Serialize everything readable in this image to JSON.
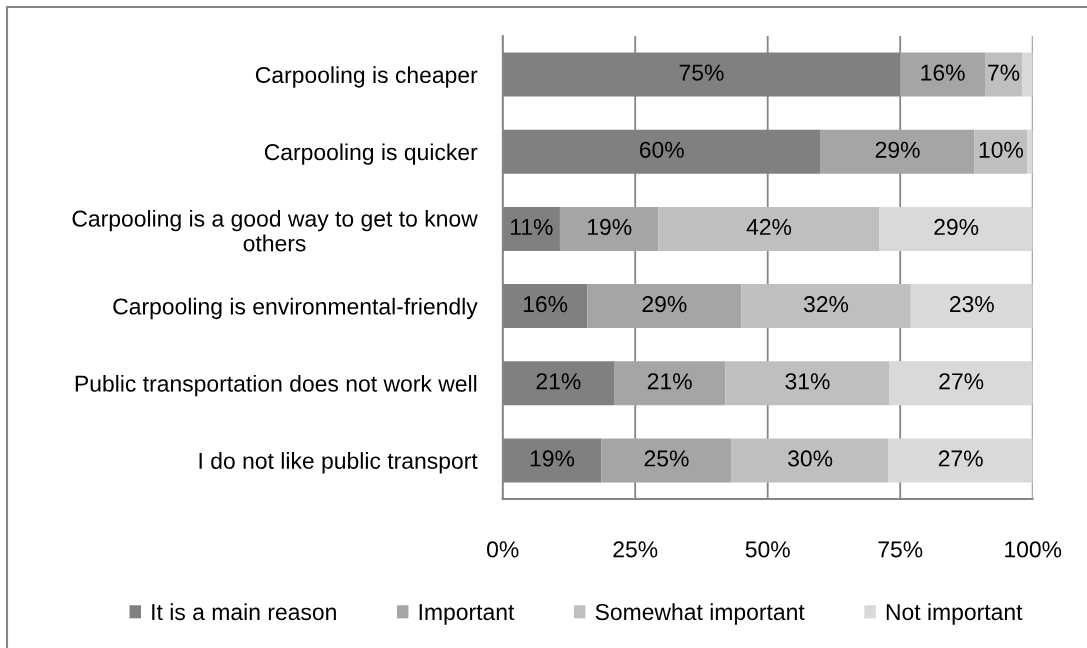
{
  "chart_data": {
    "type": "bar",
    "orientation": "horizontal",
    "stacked": true,
    "categories": [
      "Carpooling is cheaper",
      "Carpooling is quicker",
      "Carpooling is a good way to get to know\nothers",
      "Carpooling is environmental-friendly",
      "Public transportation does not work well",
      "I do not like public transport"
    ],
    "series": [
      {
        "name": "It is a main reason",
        "color": "#808080",
        "values": [
          75,
          60,
          10.8,
          16,
          21,
          18.6
        ],
        "value_labels": [
          "75%",
          "60%",
          "11%",
          "16%",
          "21%",
          "19%"
        ]
      },
      {
        "name": "Important",
        "color": "#a5a5a5",
        "values": [
          16,
          29,
          18.6,
          29,
          21,
          24.6
        ],
        "value_labels": [
          "16%",
          "29%",
          "19%",
          "29%",
          "21%",
          "25%"
        ]
      },
      {
        "name": "Somewhat important",
        "color": "#bfbfbf",
        "values": [
          7,
          10,
          41.7,
          32,
          31,
          29.6
        ],
        "value_labels": [
          "7%",
          "10%",
          "42%",
          "32%",
          "31%",
          "30%"
        ]
      },
      {
        "name": "Not important",
        "color": "#d9d9d9",
        "values": [
          2,
          1,
          28.9,
          23,
          27,
          27.2
        ],
        "value_labels": [
          null,
          null,
          "29%",
          "23%",
          "27%",
          "27%"
        ]
      }
    ],
    "xlim": [
      0,
      100
    ],
    "xticks": [
      {
        "value": 0,
        "label": "0%"
      },
      {
        "value": 25,
        "label": "25%"
      },
      {
        "value": 50,
        "label": "50%"
      },
      {
        "value": 75,
        "label": "75%"
      },
      {
        "value": 100,
        "label": "100%"
      }
    ],
    "grid": "x",
    "legend": "bottom"
  }
}
